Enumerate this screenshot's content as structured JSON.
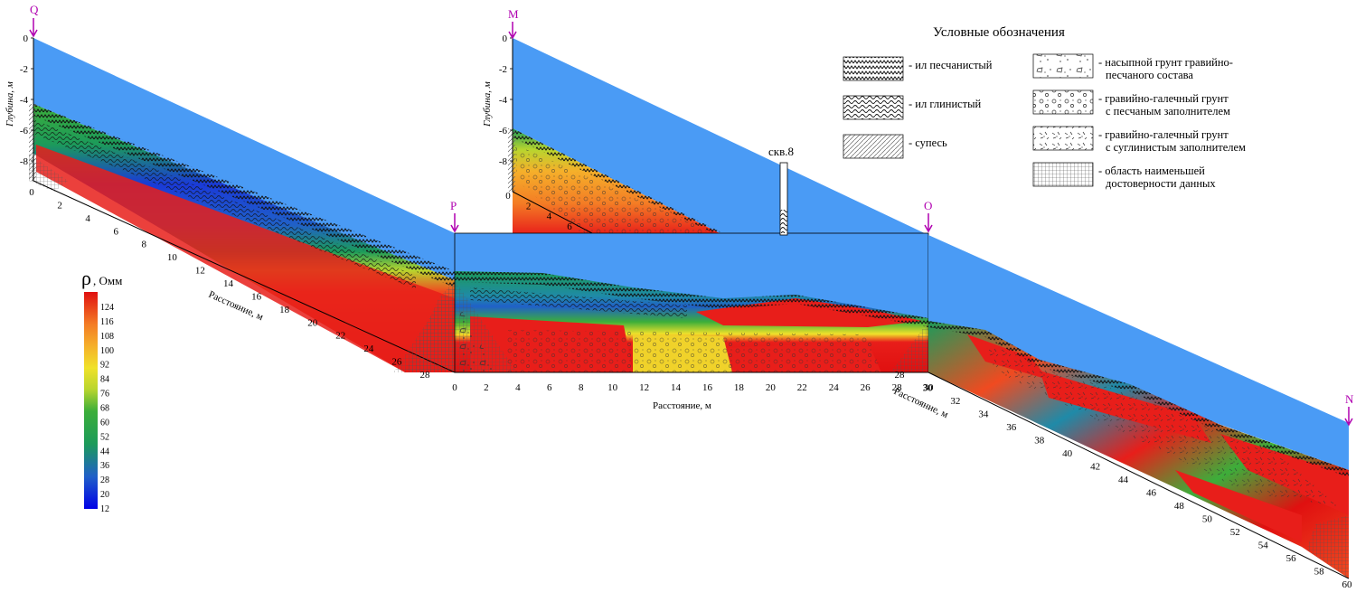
{
  "legend": {
    "title": "Условные обозначения",
    "items": [
      {
        "pattern": "pat-silt-sandy",
        "label": "- ил песчанистый",
        "label2": ""
      },
      {
        "pattern": "pat-silt-clay",
        "label": "- ил глинистый",
        "label2": ""
      },
      {
        "pattern": "pat-sandy-loam",
        "label": "- супесь",
        "label2": ""
      },
      {
        "pattern": "pat-fill",
        "label": "- насыпной грунт гравийно-",
        "label2": "песчаного состава"
      },
      {
        "pattern": "pat-gravel-sand",
        "label": "- гравийно-галечный грунт",
        "label2": "с песчаным заполнителем"
      },
      {
        "pattern": "pat-gravel-loam",
        "label": "- гравийно-галечный грунт",
        "label2": "с суглинистым заполнителем"
      },
      {
        "pattern": "pat-low-conf",
        "label": "- область наименьшей",
        "label2": "достоверности данных"
      }
    ]
  },
  "colorbar": {
    "title_symbol": "ρ",
    "title_unit": ", Омм",
    "ticks": [
      "124",
      "116",
      "108",
      "100",
      "92",
      "84",
      "76",
      "68",
      "60",
      "52",
      "44",
      "36",
      "28",
      "20",
      "12"
    ],
    "colors": [
      "#0000e6",
      "#1a3ad8",
      "#2060c8",
      "#1f8aa8",
      "#1c9b5a",
      "#3cae3a",
      "#79c235",
      "#b8d52e",
      "#f0e22a",
      "#f5b02a",
      "#f47d25",
      "#f04a20",
      "#e81e1a",
      "#e01010"
    ]
  },
  "markers": {
    "q": "Q",
    "m": "M",
    "p": "P",
    "o": "O",
    "n": "N"
  },
  "well_label": "скв.8",
  "axes": {
    "depth_label": "Глубина, м",
    "distance_label": "Расстояние, м",
    "depth_ticks": [
      "0",
      "-2",
      "-4",
      "-6",
      "-8"
    ]
  },
  "chart_data": {
    "type": "diagram",
    "profiles": [
      {
        "name": "Q",
        "distance_ticks": [
          "0",
          "2",
          "4",
          "6",
          "8",
          "10",
          "12",
          "14",
          "16",
          "18",
          "20",
          "22",
          "24",
          "26",
          "28"
        ]
      },
      {
        "name": "M",
        "distance_ticks": [
          "0",
          "2",
          "4",
          "6"
        ]
      },
      {
        "name": "P-O",
        "distance_ticks": [
          "0",
          "2",
          "4",
          "6",
          "8",
          "10",
          "12",
          "14",
          "16",
          "18",
          "20",
          "22",
          "24",
          "26",
          "28",
          "30"
        ]
      },
      {
        "name": "O-N",
        "distance_ticks": [
          "28",
          "30",
          "32",
          "34",
          "36",
          "38",
          "40",
          "42",
          "44",
          "46",
          "48",
          "50",
          "52",
          "54",
          "56",
          "58",
          "60"
        ]
      }
    ]
  }
}
